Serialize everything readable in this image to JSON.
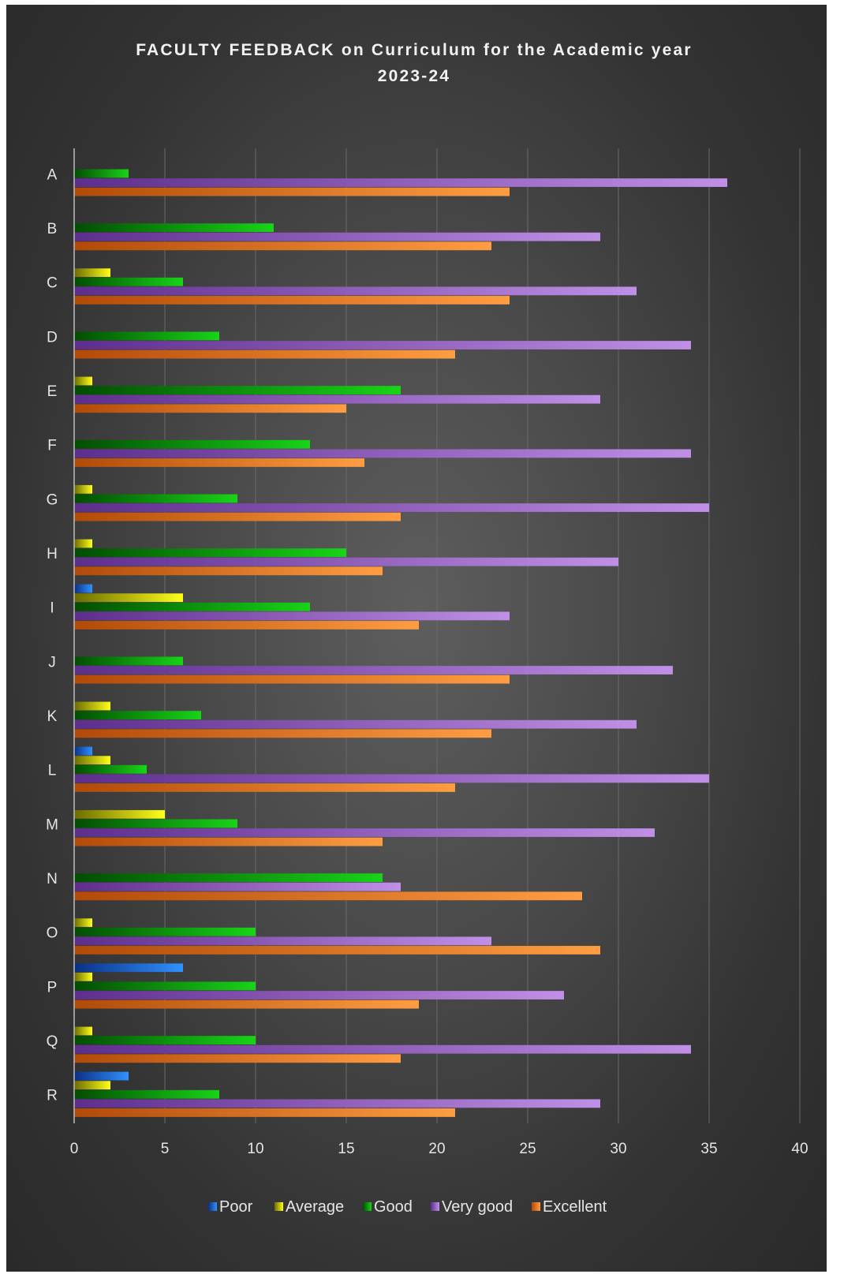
{
  "chart_data": {
    "type": "bar",
    "orientation": "horizontal",
    "title": "FACULTY FEEDBACK on Curriculum  for the Academic year 2023-24",
    "title_lines": [
      "FACULTY FEEDBACK on Curriculum  for the Academic year",
      "2023-24"
    ],
    "categories": [
      "A",
      "B",
      "C",
      "D",
      "E",
      "F",
      "G",
      "H",
      "I",
      "J",
      "K",
      "L",
      "M",
      "N",
      "O",
      "P",
      "Q",
      "R"
    ],
    "xlim": [
      0,
      40
    ],
    "x_ticks": [
      0,
      5,
      10,
      15,
      20,
      25,
      30,
      35,
      40
    ],
    "grid": true,
    "legend_position": "bottom",
    "series": [
      {
        "name": "Poor",
        "color": "#1e7cf2",
        "values": [
          0,
          0,
          0,
          0,
          0,
          0,
          0,
          0,
          1,
          0,
          0,
          1,
          0,
          0,
          0,
          6,
          0,
          3
        ]
      },
      {
        "name": "Average",
        "color": "#d8d80a",
        "values": [
          0,
          0,
          2,
          0,
          1,
          0,
          1,
          1,
          6,
          0,
          2,
          2,
          5,
          0,
          1,
          1,
          1,
          2
        ]
      },
      {
        "name": "Good",
        "color": "#0fae0f",
        "values": [
          3,
          11,
          6,
          8,
          18,
          13,
          9,
          15,
          13,
          6,
          7,
          4,
          9,
          17,
          10,
          10,
          10,
          8
        ]
      },
      {
        "name": "Very good",
        "color": "#9b5fcf",
        "values": [
          36,
          29,
          31,
          34,
          29,
          34,
          35,
          30,
          24,
          33,
          31,
          35,
          32,
          18,
          23,
          27,
          34,
          29
        ]
      },
      {
        "name": "Excellent",
        "color": "#f0852a",
        "values": [
          24,
          23,
          24,
          21,
          15,
          16,
          18,
          17,
          19,
          24,
          23,
          21,
          17,
          28,
          29,
          19,
          18,
          21
        ]
      }
    ]
  }
}
